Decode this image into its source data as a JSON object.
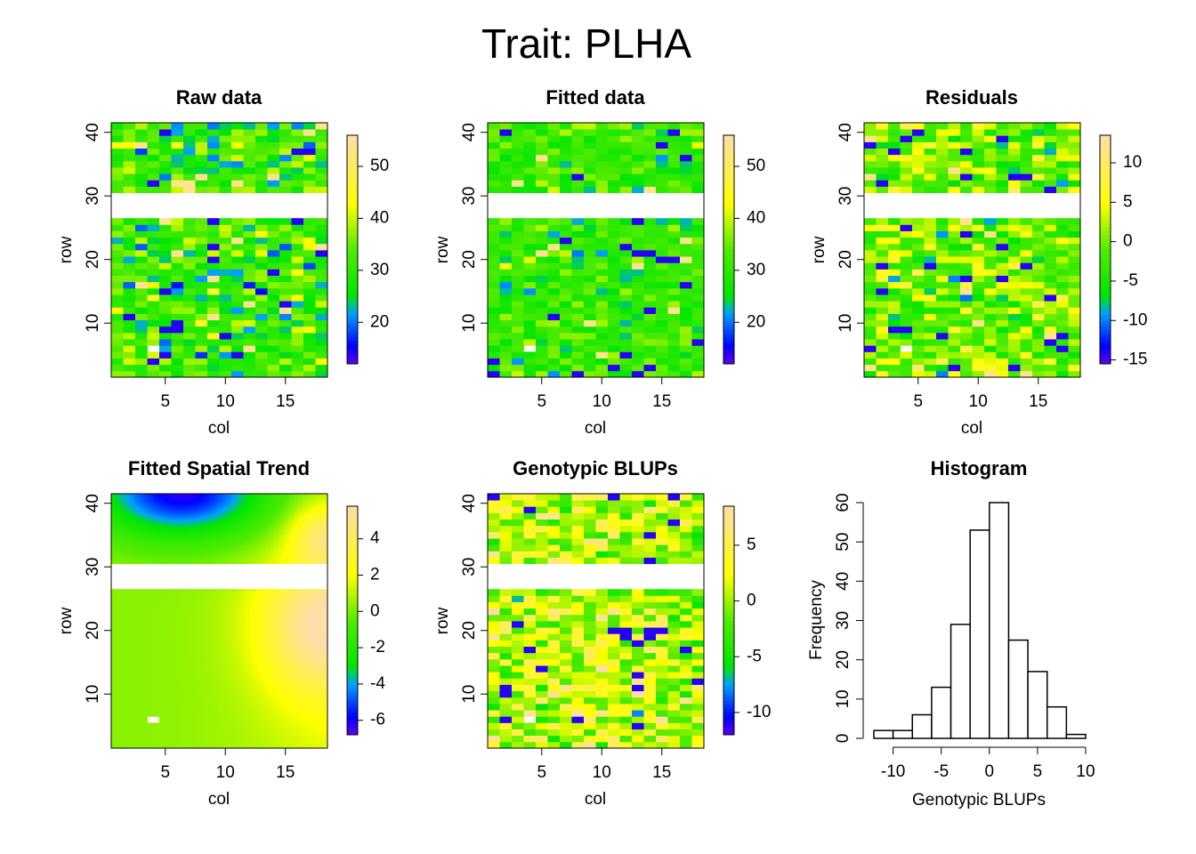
{
  "title": "Trait: PLHA",
  "chart_data": [
    {
      "type": "heatmap",
      "title": "Raw data",
      "xlabel": "col",
      "ylabel": "row",
      "xlim": [
        0.5,
        18.5
      ],
      "ylim": [
        1.5,
        41.5
      ],
      "xticks": [
        5,
        10,
        15
      ],
      "yticks": [
        10,
        20,
        30,
        40
      ],
      "missing_rows": [
        27,
        28,
        29,
        30
      ],
      "missing_cells": [
        [
          4,
          6
        ]
      ],
      "zlim": [
        12,
        56
      ],
      "legend_ticks": [
        20,
        30,
        40,
        50
      ],
      "pattern": "random",
      "base": 31,
      "spread": 6
    },
    {
      "type": "heatmap",
      "title": "Fitted data",
      "xlabel": "col",
      "ylabel": "row",
      "xlim": [
        0.5,
        18.5
      ],
      "ylim": [
        1.5,
        41.5
      ],
      "xticks": [
        5,
        10,
        15
      ],
      "yticks": [
        10,
        20,
        30,
        40
      ],
      "missing_rows": [
        27,
        28,
        29,
        30
      ],
      "missing_cells": [
        [
          4,
          6
        ]
      ],
      "zlim": [
        12,
        56
      ],
      "legend_ticks": [
        20,
        30,
        40,
        50
      ],
      "pattern": "random",
      "base": 31,
      "spread": 4
    },
    {
      "type": "heatmap",
      "title": "Residuals",
      "xlabel": "col",
      "ylabel": "row",
      "xlim": [
        0.5,
        18.5
      ],
      "ylim": [
        1.5,
        41.5
      ],
      "xticks": [
        5,
        10,
        15
      ],
      "yticks": [
        10,
        20,
        30,
        40
      ],
      "missing_rows": [
        27,
        28,
        29,
        30
      ],
      "missing_cells": [
        [
          4,
          6
        ]
      ],
      "zlim": [
        -15.5,
        13.5
      ],
      "legend_ticks": [
        -15,
        -10,
        -5,
        0,
        5,
        10
      ],
      "pattern": "random",
      "base": 0,
      "spread": 4
    },
    {
      "type": "heatmap",
      "title": "Fitted Spatial Trend",
      "xlabel": "col",
      "ylabel": "row",
      "xlim": [
        0.5,
        18.5
      ],
      "ylim": [
        1.5,
        41.5
      ],
      "xticks": [
        5,
        10,
        15
      ],
      "yticks": [
        10,
        20,
        30,
        40
      ],
      "missing_rows": [
        27,
        28,
        29,
        30
      ],
      "missing_cells": [
        [
          4,
          6
        ]
      ],
      "zlim": [
        -6.8,
        5.8
      ],
      "legend_ticks": [
        -6,
        -4,
        -2,
        0,
        2,
        4
      ],
      "pattern": "smooth"
    },
    {
      "type": "heatmap",
      "title": "Genotypic BLUPs",
      "xlabel": "col",
      "ylabel": "row",
      "xlim": [
        0.5,
        18.5
      ],
      "ylim": [
        1.5,
        41.5
      ],
      "xticks": [
        5,
        10,
        15
      ],
      "yticks": [
        10,
        20,
        30,
        40
      ],
      "missing_rows": [
        27,
        28,
        29,
        30
      ],
      "missing_cells": [
        [
          4,
          6
        ]
      ],
      "zlim": [
        -12,
        8.5
      ],
      "legend_ticks": [
        -10,
        -5,
        0,
        5
      ],
      "pattern": "random",
      "base": 1,
      "spread": 3
    },
    {
      "type": "bar",
      "title": "Histogram",
      "xlabel": "Genotypic BLUPs",
      "ylabel": "Frequency",
      "bins": [
        {
          "x0": -12,
          "x1": -10,
          "count": 2
        },
        {
          "x0": -10,
          "x1": -8,
          "count": 2
        },
        {
          "x0": -8,
          "x1": -6,
          "count": 6
        },
        {
          "x0": -6,
          "x1": -4,
          "count": 13
        },
        {
          "x0": -4,
          "x1": -2,
          "count": 29
        },
        {
          "x0": -2,
          "x1": 0,
          "count": 53
        },
        {
          "x0": 0,
          "x1": 2,
          "count": 60
        },
        {
          "x0": 2,
          "x1": 4,
          "count": 25
        },
        {
          "x0": 4,
          "x1": 6,
          "count": 17
        },
        {
          "x0": 6,
          "x1": 8,
          "count": 8
        },
        {
          "x0": 8,
          "x1": 10,
          "count": 1
        }
      ],
      "xticks": [
        -10,
        -5,
        0,
        5,
        10
      ],
      "yticks": [
        0,
        10,
        20,
        30,
        40,
        50,
        60
      ],
      "xlim": [
        -12,
        10
      ],
      "ylim": [
        0,
        60
      ]
    }
  ]
}
